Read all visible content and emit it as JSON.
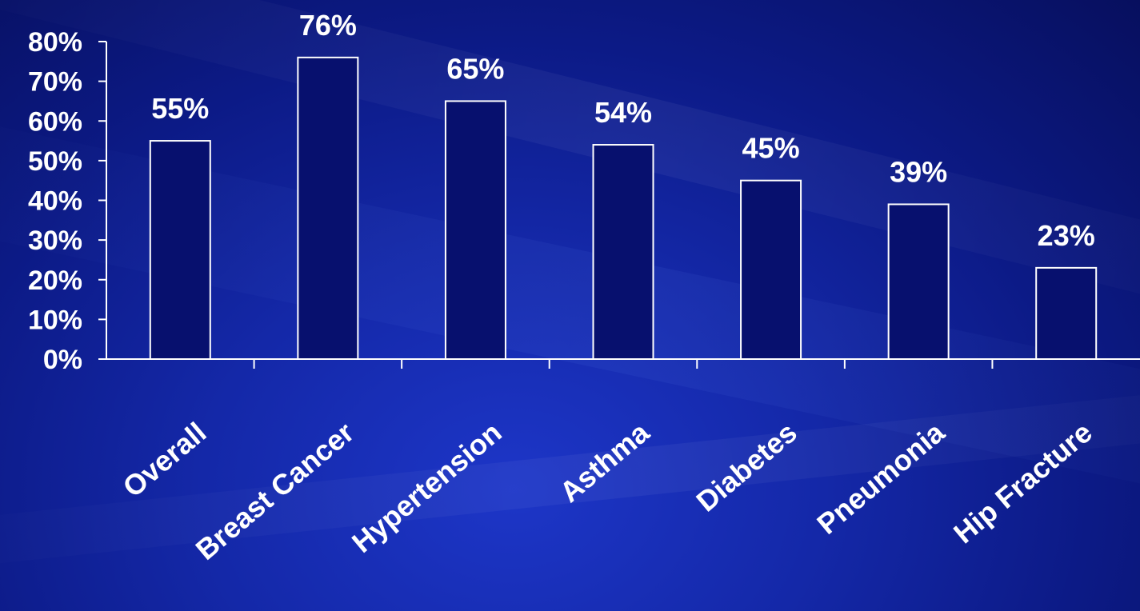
{
  "colors": {
    "background": "#0c1a86",
    "bar_fill": "#07106e",
    "bar_stroke": "#ffffff",
    "text": "#ffffff",
    "axis": "#ffffff"
  },
  "chart_data": {
    "type": "bar",
    "title": "",
    "xlabel": "",
    "ylabel": "",
    "categories": [
      "Overall",
      "Breast Cancer",
      "Hypertension",
      "Asthma",
      "Diabetes",
      "Pneumonia",
      "Hip Fracture"
    ],
    "values": [
      55,
      76,
      65,
      54,
      45,
      39,
      23
    ],
    "value_labels": [
      "55%",
      "76%",
      "65%",
      "54%",
      "45%",
      "39%",
      "23%"
    ],
    "ylim": [
      0,
      80
    ],
    "y_ticks": [
      0,
      10,
      20,
      30,
      40,
      50,
      60,
      70,
      80
    ],
    "y_tick_labels": [
      "0%",
      "10%",
      "20%",
      "30%",
      "40%",
      "50%",
      "60%",
      "70%",
      "80%"
    ],
    "grid": false,
    "legend": "none"
  }
}
